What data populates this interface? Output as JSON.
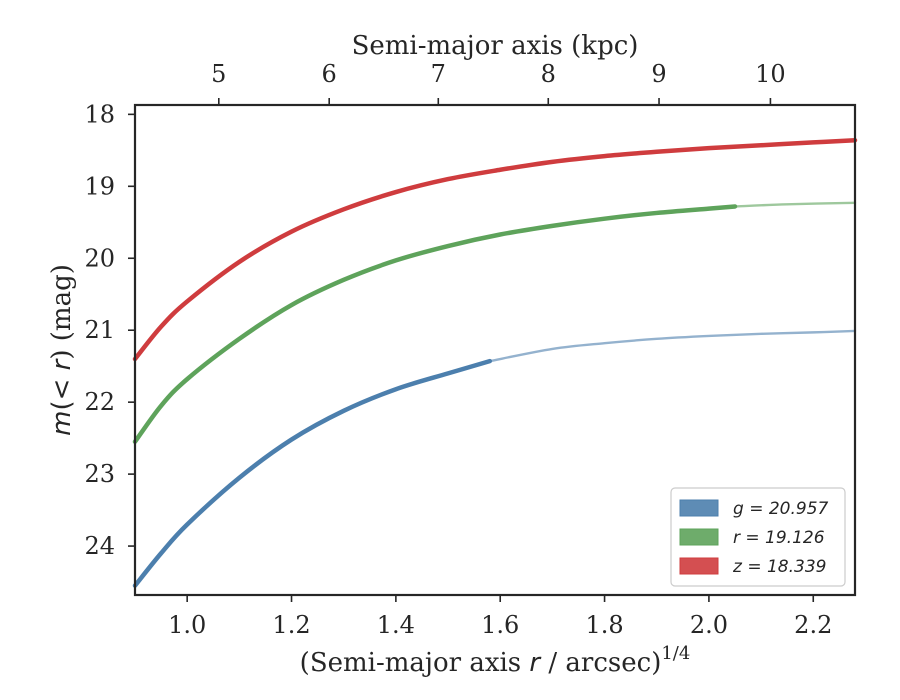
{
  "chart_data": {
    "type": "line",
    "xlabel": {
      "main": "(Semi-major axis ",
      "var": "r",
      "rest": " / arcsec)",
      "sup": "1/4"
    },
    "ylabel": {
      "var": "m",
      "paren_open": "(< ",
      "var2": "r",
      "rest": ") (mag)"
    },
    "top_xlabel": "Semi-major axis (kpc)",
    "xlim": [
      0.9,
      2.28
    ],
    "ylim": [
      24.68,
      17.87
    ],
    "y_inverted": true,
    "x_ticks": [
      1.0,
      1.2,
      1.4,
      1.6,
      1.8,
      2.0,
      2.2
    ],
    "x_tick_labels": [
      "1.0",
      "1.2",
      "1.4",
      "1.6",
      "1.8",
      "2.0",
      "2.2"
    ],
    "y_ticks": [
      18,
      19,
      20,
      21,
      22,
      23,
      24
    ],
    "y_tick_labels": [
      "18",
      "19",
      "20",
      "21",
      "22",
      "23",
      "24"
    ],
    "top_ticks_x": [
      1.0606,
      1.2722,
      1.4813,
      1.6921,
      1.9044,
      2.1179
    ],
    "top_tick_labels": [
      "5",
      "6",
      "7",
      "8",
      "9",
      "10"
    ],
    "legend_position": "lower-right",
    "grid": false,
    "series": [
      {
        "name": "g = 20.957",
        "legend_label": "g = 20.957",
        "color": "#4c7fad",
        "x": [
          0.9,
          0.95,
          1.0,
          1.1,
          1.2,
          1.3,
          1.4,
          1.5,
          1.58
        ],
        "y": [
          24.55,
          24.1,
          23.7,
          23.05,
          22.52,
          22.12,
          21.82,
          21.6,
          21.43
        ],
        "extrapolated": {
          "x": [
            1.58,
            1.7,
            1.8,
            1.9,
            2.0,
            2.1,
            2.2,
            2.28
          ],
          "y": [
            21.43,
            21.26,
            21.18,
            21.12,
            21.08,
            21.05,
            21.03,
            21.01
          ]
        }
      },
      {
        "name": "r = 19.126",
        "legend_label": "r = 19.126",
        "color": "#5ea35b",
        "x": [
          0.9,
          0.95,
          1.0,
          1.1,
          1.2,
          1.3,
          1.4,
          1.5,
          1.6,
          1.7,
          1.8,
          1.9,
          2.0,
          2.05
        ],
        "y": [
          22.55,
          22.05,
          21.68,
          21.12,
          20.65,
          20.3,
          20.03,
          19.83,
          19.67,
          19.55,
          19.45,
          19.37,
          19.31,
          19.28
        ],
        "extrapolated": {
          "x": [
            2.05,
            2.15,
            2.28
          ],
          "y": [
            19.28,
            19.25,
            19.23
          ]
        }
      },
      {
        "name": "z = 18.339",
        "legend_label": "z = 18.339",
        "color": "#cf3c3e",
        "x": [
          0.9,
          0.95,
          1.0,
          1.1,
          1.2,
          1.3,
          1.4,
          1.5,
          1.6,
          1.7,
          1.8,
          1.9,
          2.0,
          2.1,
          2.2,
          2.28
        ],
        "y": [
          21.4,
          20.95,
          20.6,
          20.05,
          19.63,
          19.32,
          19.08,
          18.9,
          18.77,
          18.66,
          18.58,
          18.52,
          18.47,
          18.43,
          18.39,
          18.36
        ],
        "extrapolated": null
      }
    ]
  }
}
